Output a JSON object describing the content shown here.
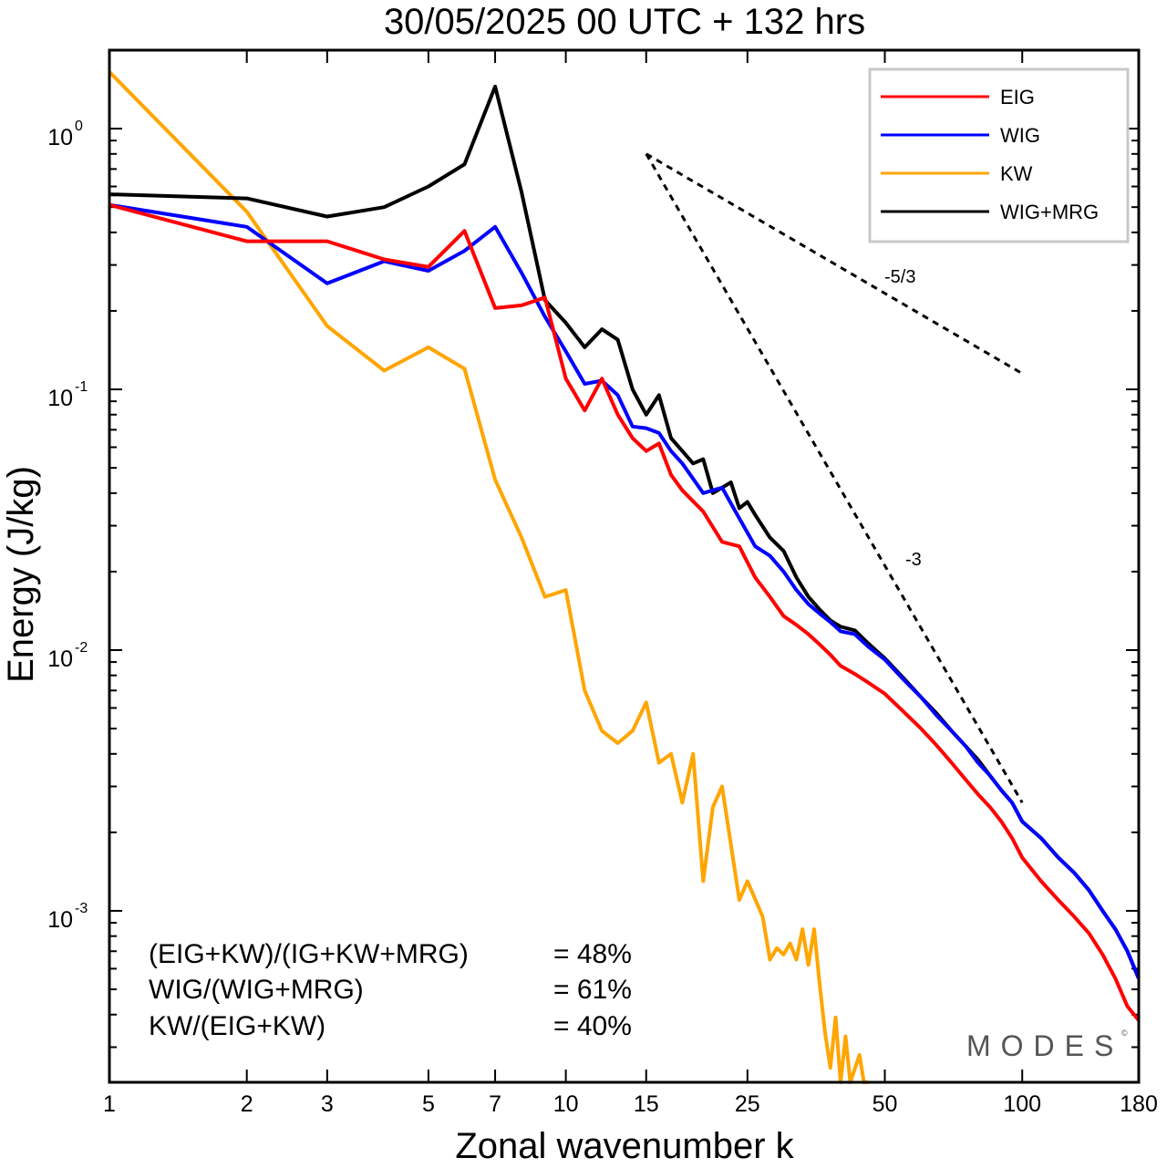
{
  "chart_data": {
    "type": "line",
    "title": "30/05/2025  00 UTC  + 132 hrs",
    "xlabel": "Zonal wavenumber k",
    "ylabel": "Energy (J/kg)",
    "xscale": "log",
    "yscale": "log",
    "xlim": [
      1,
      180
    ],
    "ylim": [
      0.00022,
      2.0
    ],
    "xticks": [
      1,
      2,
      3,
      5,
      7,
      10,
      15,
      25,
      50,
      100,
      180
    ],
    "xtick_labels": [
      "1",
      "2",
      "3",
      "5",
      "7",
      "10",
      "15",
      "25",
      "50",
      "100",
      "180"
    ],
    "yticks": [
      {
        "value": 1,
        "base": "10",
        "exp": "0"
      },
      {
        "value": 0.1,
        "base": "10",
        "exp": "-1"
      },
      {
        "value": 0.01,
        "base": "10",
        "exp": "-2"
      },
      {
        "value": 0.001,
        "base": "10",
        "exp": "-3"
      }
    ],
    "grid": false,
    "legend_position": "top-right",
    "series": [
      {
        "name": "EIG",
        "color": "#ff0000",
        "points": [
          [
            1,
            0.51
          ],
          [
            2,
            0.37
          ],
          [
            3,
            0.37
          ],
          [
            4,
            0.315
          ],
          [
            5,
            0.295
          ],
          [
            6,
            0.405
          ],
          [
            7,
            0.205
          ],
          [
            8,
            0.21
          ],
          [
            9,
            0.225
          ],
          [
            10,
            0.11
          ],
          [
            11,
            0.083
          ],
          [
            12,
            0.11
          ],
          [
            13,
            0.08
          ],
          [
            14,
            0.065
          ],
          [
            15,
            0.058
          ],
          [
            16,
            0.062
          ],
          [
            17,
            0.047
          ],
          [
            18,
            0.041
          ],
          [
            20,
            0.034
          ],
          [
            22,
            0.026
          ],
          [
            24,
            0.025
          ],
          [
            26,
            0.019
          ],
          [
            28,
            0.016
          ],
          [
            30,
            0.0135
          ],
          [
            32,
            0.0125
          ],
          [
            34,
            0.0115
          ],
          [
            36,
            0.0105
          ],
          [
            38,
            0.0096
          ],
          [
            40,
            0.0087
          ],
          [
            43,
            0.0081
          ],
          [
            46,
            0.0075
          ],
          [
            50,
            0.0068
          ],
          [
            55,
            0.0058
          ],
          [
            60,
            0.005
          ],
          [
            65,
            0.0043
          ],
          [
            70,
            0.0037
          ],
          [
            75,
            0.0032
          ],
          [
            80,
            0.0028
          ],
          [
            85,
            0.0025
          ],
          [
            90,
            0.0022
          ],
          [
            95,
            0.0019
          ],
          [
            100,
            0.0016
          ],
          [
            110,
            0.0013
          ],
          [
            120,
            0.0011
          ],
          [
            130,
            0.00095
          ],
          [
            140,
            0.00082
          ],
          [
            150,
            0.00068
          ],
          [
            160,
            0.00055
          ],
          [
            170,
            0.00043
          ],
          [
            180,
            0.00038
          ]
        ]
      },
      {
        "name": "WIG",
        "color": "#0000ff",
        "points": [
          [
            1,
            0.51
          ],
          [
            2,
            0.42
          ],
          [
            3,
            0.255
          ],
          [
            4,
            0.31
          ],
          [
            5,
            0.285
          ],
          [
            6,
            0.34
          ],
          [
            7,
            0.42
          ],
          [
            8,
            0.28
          ],
          [
            9,
            0.19
          ],
          [
            10,
            0.14
          ],
          [
            11,
            0.105
          ],
          [
            12,
            0.108
          ],
          [
            13,
            0.095
          ],
          [
            14,
            0.072
          ],
          [
            15,
            0.071
          ],
          [
            16,
            0.068
          ],
          [
            17,
            0.058
          ],
          [
            18,
            0.052
          ],
          [
            20,
            0.04
          ],
          [
            22,
            0.042
          ],
          [
            24,
            0.032
          ],
          [
            26,
            0.025
          ],
          [
            28,
            0.023
          ],
          [
            30,
            0.02
          ],
          [
            32,
            0.017
          ],
          [
            34,
            0.015
          ],
          [
            36,
            0.0138
          ],
          [
            38,
            0.0128
          ],
          [
            40,
            0.0118
          ],
          [
            43,
            0.0115
          ],
          [
            46,
            0.0103
          ],
          [
            50,
            0.0092
          ],
          [
            55,
            0.0077
          ],
          [
            60,
            0.0066
          ],
          [
            65,
            0.0056
          ],
          [
            70,
            0.0049
          ],
          [
            75,
            0.0043
          ],
          [
            80,
            0.0037
          ],
          [
            85,
            0.0033
          ],
          [
            90,
            0.0029
          ],
          [
            95,
            0.0026
          ],
          [
            100,
            0.0022
          ],
          [
            110,
            0.0019
          ],
          [
            120,
            0.0016
          ],
          [
            130,
            0.0014
          ],
          [
            140,
            0.0012
          ],
          [
            150,
            0.001
          ],
          [
            160,
            0.00085
          ],
          [
            170,
            0.0007
          ],
          [
            180,
            0.00055
          ]
        ]
      },
      {
        "name": "KW",
        "color": "#ffa500",
        "points": [
          [
            1,
            1.65
          ],
          [
            2,
            0.48
          ],
          [
            3,
            0.175
          ],
          [
            4,
            0.118
          ],
          [
            5,
            0.145
          ],
          [
            6,
            0.12
          ],
          [
            7,
            0.045
          ],
          [
            8,
            0.027
          ],
          [
            9,
            0.016
          ],
          [
            10,
            0.017
          ],
          [
            11,
            0.007
          ],
          [
            12,
            0.0049
          ],
          [
            13,
            0.0044
          ],
          [
            14,
            0.0049
          ],
          [
            15,
            0.0063
          ],
          [
            16,
            0.0037
          ],
          [
            17,
            0.004
          ],
          [
            18,
            0.0026
          ],
          [
            19,
            0.004
          ],
          [
            20,
            0.0013
          ],
          [
            21,
            0.0025
          ],
          [
            22,
            0.003
          ],
          [
            24,
            0.0011
          ],
          [
            25,
            0.0013
          ],
          [
            27,
            0.00095
          ],
          [
            28,
            0.00065
          ],
          [
            29,
            0.00072
          ],
          [
            30,
            0.00068
          ],
          [
            31,
            0.00075
          ],
          [
            32,
            0.00065
          ],
          [
            33,
            0.00085
          ],
          [
            34,
            0.00062
          ],
          [
            35,
            0.00085
          ],
          [
            36,
            0.00052
          ],
          [
            37,
            0.00034
          ],
          [
            38,
            0.00025
          ],
          [
            39,
            0.00039
          ],
          [
            40,
            0.00022
          ],
          [
            41,
            0.00033
          ],
          [
            42,
            0.00022
          ],
          [
            44,
            0.00028
          ],
          [
            45,
            0.00022
          ],
          [
            46,
            0.00022
          ]
        ]
      },
      {
        "name": "WIG+MRG",
        "color": "#000000",
        "points": [
          [
            1,
            0.56
          ],
          [
            2,
            0.54
          ],
          [
            3,
            0.46
          ],
          [
            4,
            0.5
          ],
          [
            5,
            0.6
          ],
          [
            6,
            0.73
          ],
          [
            7,
            1.45
          ],
          [
            8,
            0.57
          ],
          [
            9,
            0.22
          ],
          [
            10,
            0.18
          ],
          [
            11,
            0.145
          ],
          [
            12,
            0.17
          ],
          [
            13,
            0.155
          ],
          [
            14,
            0.1
          ],
          [
            15,
            0.08
          ],
          [
            16,
            0.095
          ],
          [
            17,
            0.065
          ],
          [
            18,
            0.058
          ],
          [
            19,
            0.052
          ],
          [
            20,
            0.054
          ],
          [
            21,
            0.04
          ],
          [
            22,
            0.042
          ],
          [
            23,
            0.044
          ],
          [
            24,
            0.035
          ],
          [
            25,
            0.037
          ],
          [
            26,
            0.033
          ],
          [
            28,
            0.027
          ],
          [
            30,
            0.024
          ],
          [
            32,
            0.019
          ],
          [
            34,
            0.016
          ],
          [
            36,
            0.0143
          ],
          [
            38,
            0.013
          ],
          [
            40,
            0.0123
          ],
          [
            43,
            0.0119
          ],
          [
            46,
            0.0106
          ],
          [
            50,
            0.0093
          ],
          [
            55,
            0.0078
          ],
          [
            60,
            0.0066
          ],
          [
            65,
            0.0057
          ],
          [
            70,
            0.0049
          ],
          [
            75,
            0.0043
          ],
          [
            80,
            0.0038
          ],
          [
            85,
            0.0033
          ],
          [
            90,
            0.0029
          ],
          [
            95,
            0.0026
          ],
          [
            100,
            0.0022
          ],
          [
            110,
            0.0019
          ],
          [
            120,
            0.0016
          ],
          [
            130,
            0.0014
          ],
          [
            140,
            0.0012
          ],
          [
            150,
            0.001
          ],
          [
            160,
            0.00085
          ],
          [
            170,
            0.0007
          ],
          [
            180,
            0.00055
          ]
        ]
      }
    ],
    "reference_lines": [
      {
        "label": "-5/3",
        "points": [
          [
            15,
            0.8
          ],
          [
            100,
            0.115
          ]
        ]
      },
      {
        "label": "-3",
        "points": [
          [
            15,
            0.8
          ],
          [
            100,
            0.0026
          ]
        ]
      }
    ],
    "annotations": [
      {
        "lhs": "(EIG+KW)/(IG+KW+MRG)",
        "rhs": "= 48%"
      },
      {
        "lhs": "WIG/(WIG+MRG)",
        "rhs": "= 61%"
      },
      {
        "lhs": "KW/(EIG+KW)",
        "rhs": "= 40%"
      }
    ]
  },
  "branding": {
    "name": "MODES",
    "copyright": "©"
  }
}
